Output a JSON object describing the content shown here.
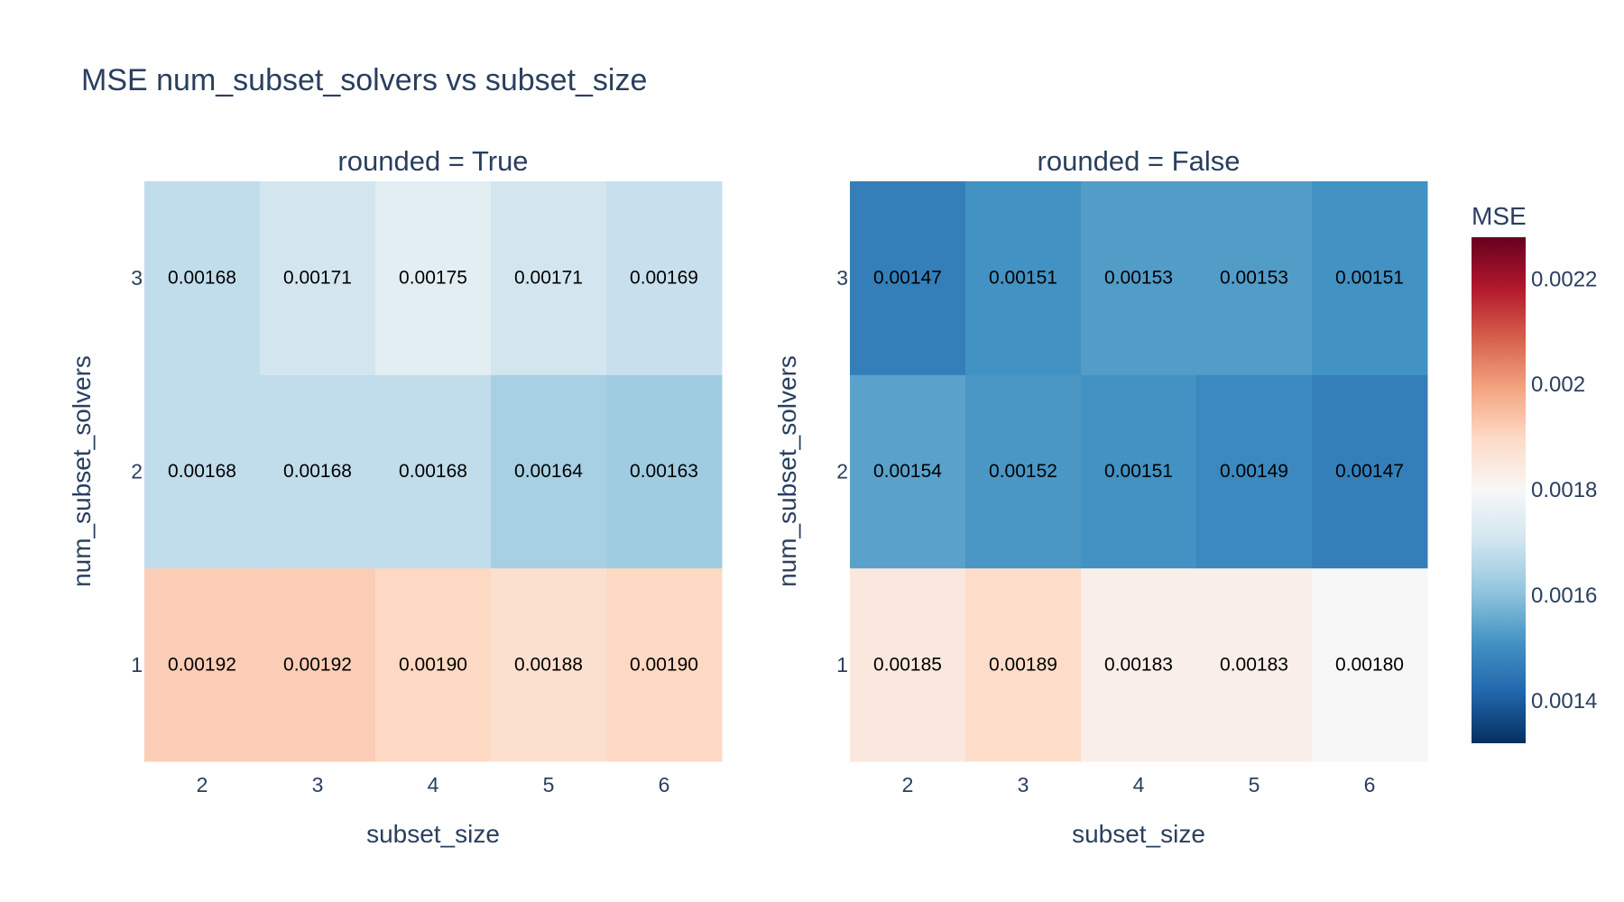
{
  "chart_data": {
    "type": "heatmap",
    "title": "MSE num_subset_solvers vs subset_size",
    "x_categories": [
      "2",
      "3",
      "4",
      "5",
      "6"
    ],
    "y_categories": [
      "1",
      "2",
      "3"
    ],
    "xlabel": "subset_size",
    "ylabel": "num_subset_solvers",
    "panels": [
      {
        "subtitle": "rounded = True",
        "values": [
          [
            0.00192,
            0.00192,
            0.0019,
            0.00188,
            0.0019
          ],
          [
            0.00168,
            0.00168,
            0.00168,
            0.00164,
            0.00163
          ],
          [
            0.00168,
            0.00171,
            0.00175,
            0.00171,
            0.00169
          ]
        ],
        "labels": [
          [
            "0.00192",
            "0.00192",
            "0.00190",
            "0.00188",
            "0.00190"
          ],
          [
            "0.00168",
            "0.00168",
            "0.00168",
            "0.00164",
            "0.00163"
          ],
          [
            "0.00168",
            "0.00171",
            "0.00175",
            "0.00171",
            "0.00169"
          ]
        ]
      },
      {
        "subtitle": "rounded = False",
        "values": [
          [
            0.00185,
            0.00189,
            0.00183,
            0.00183,
            0.0018
          ],
          [
            0.00154,
            0.00152,
            0.00151,
            0.00149,
            0.00147
          ],
          [
            0.00147,
            0.00151,
            0.00153,
            0.00153,
            0.00151
          ]
        ],
        "labels": [
          [
            "0.00185",
            "0.00189",
            "0.00183",
            "0.00183",
            "0.00180"
          ],
          [
            "0.00154",
            "0.00152",
            "0.00151",
            "0.00149",
            "0.00147"
          ],
          [
            "0.00147",
            "0.00151",
            "0.00153",
            "0.00153",
            "0.00151"
          ]
        ]
      }
    ],
    "colorbar": {
      "title": "MSE",
      "range": [
        0.00132,
        0.00228
      ],
      "ticks": [
        0.0014,
        0.0016,
        0.0018,
        0.002,
        0.0022
      ],
      "tick_labels": [
        "0.0014",
        "0.0016",
        "0.0018",
        "0.002",
        "0.0022"
      ],
      "colorscale": "RdBu_r",
      "colors": [
        "#053061",
        "#2166ac",
        "#4393c3",
        "#92c5de",
        "#d1e5f0",
        "#f7f7f7",
        "#fddbc7",
        "#f4a582",
        "#d6604d",
        "#b2182b",
        "#67001f"
      ]
    },
    "grid": false
  }
}
